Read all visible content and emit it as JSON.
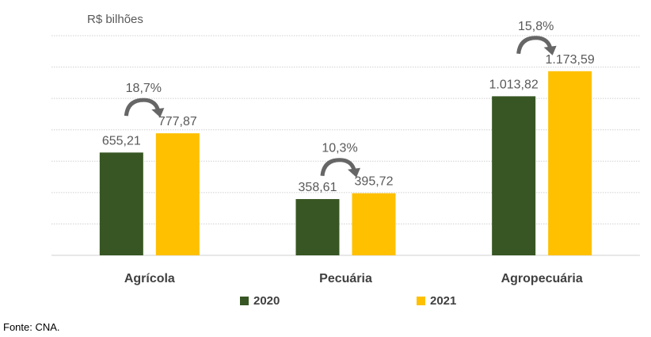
{
  "chart_data": {
    "type": "bar",
    "ylabel": "R$ bilhões",
    "categories": [
      "Agrícola",
      "Pecuária",
      "Agropecuária"
    ],
    "series": [
      {
        "name": "2020",
        "color": "#375623",
        "values": [
          655.21,
          358.61,
          1013.82
        ],
        "labels": [
          "655,21",
          "358,61",
          "1.013,82"
        ]
      },
      {
        "name": "2021",
        "color": "#FFC000",
        "values": [
          777.87,
          395.72,
          1173.59
        ],
        "labels": [
          "777,87",
          "395,72",
          "1.173,59"
        ]
      }
    ],
    "growth_labels": [
      "18,7%",
      "10,3%",
      "15,8%"
    ],
    "ylim": [
      0,
      1400
    ],
    "grid": true,
    "legend": "bottom"
  },
  "source": "Fonte: CNA."
}
